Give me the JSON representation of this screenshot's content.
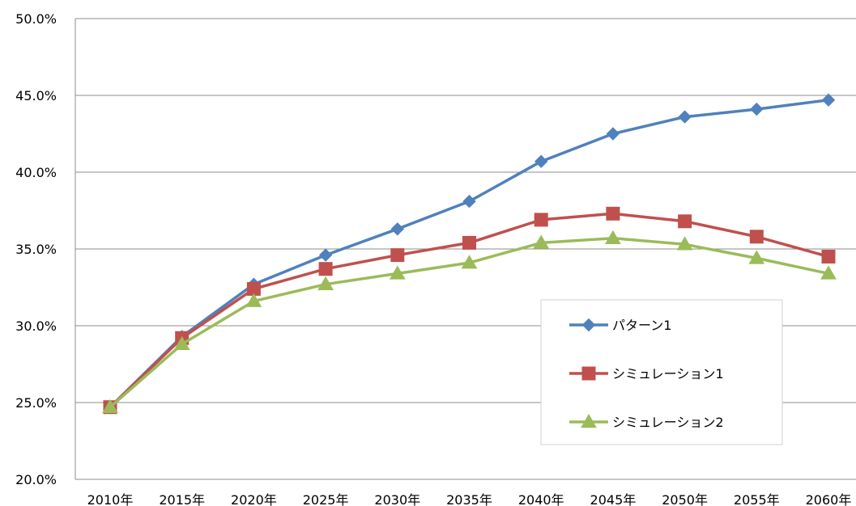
{
  "chart_data": {
    "type": "line",
    "categories": [
      "2010年",
      "2015年",
      "2020年",
      "2025年",
      "2030年",
      "2035年",
      "2040年",
      "2045年",
      "2050年",
      "2055年",
      "2060年"
    ],
    "ylim": [
      20.0,
      50.0
    ],
    "yticks": [
      20.0,
      25.0,
      30.0,
      35.0,
      40.0,
      45.0,
      50.0
    ],
    "yticks_labels": [
      "20.0%",
      "25.0%",
      "30.0%",
      "35.0%",
      "40.0%",
      "45.0%",
      "50.0%"
    ],
    "grid": true,
    "legend_position": "inside-right",
    "series": [
      {
        "name": "パターン1",
        "marker": "diamond",
        "color": "#4F81BD",
        "values": [
          24.7,
          29.3,
          32.7,
          34.6,
          36.3,
          38.1,
          40.7,
          42.5,
          43.6,
          44.1,
          44.7
        ]
      },
      {
        "name": "シミュレーション1",
        "marker": "square",
        "color": "#C0504D",
        "values": [
          24.7,
          29.2,
          32.4,
          33.7,
          34.6,
          35.4,
          36.9,
          37.3,
          36.8,
          35.8,
          34.5
        ]
      },
      {
        "name": "シミュレーション2",
        "marker": "triangle",
        "color": "#9BBB59",
        "values": [
          24.7,
          28.8,
          31.6,
          32.7,
          33.4,
          34.1,
          35.4,
          35.7,
          35.3,
          34.4,
          33.4
        ]
      }
    ]
  }
}
